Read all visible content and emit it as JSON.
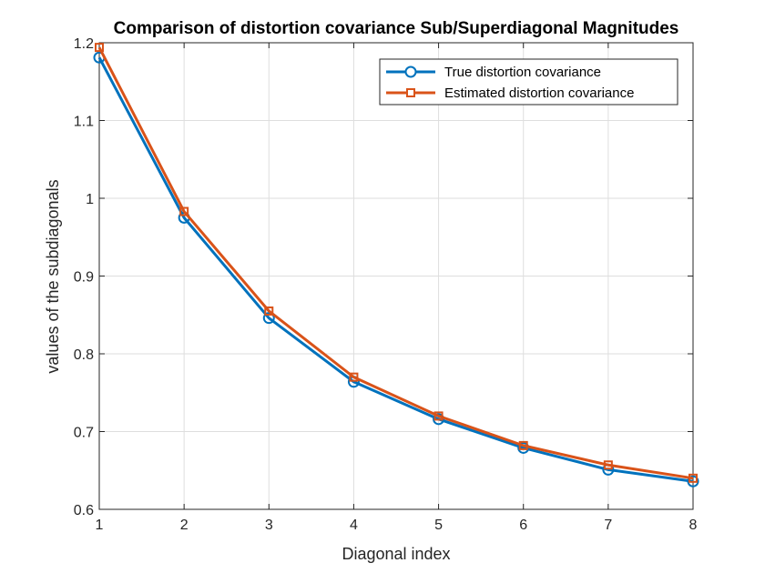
{
  "chart_data": {
    "type": "line",
    "title": "Comparison of distortion covariance Sub/Superdiagonal Magnitudes",
    "xlabel": "Diagonal index",
    "ylabel": "values of the subdiagonals",
    "xlim": [
      1,
      8
    ],
    "ylim": [
      0.6,
      1.2
    ],
    "grid": true,
    "legend_position": "top-right",
    "x": [
      1,
      2,
      3,
      4,
      5,
      6,
      7,
      8
    ],
    "x_ticks": [
      "1",
      "2",
      "3",
      "4",
      "5",
      "6",
      "7",
      "8"
    ],
    "y_tick_values": [
      0.6,
      0.7,
      0.8,
      0.9,
      1.0,
      1.1,
      1.2
    ],
    "y_ticks": [
      "0.6",
      "0.7",
      "0.8",
      "0.9",
      "1",
      "1.1",
      "1.2"
    ],
    "series": [
      {
        "name": "True distortion covariance",
        "color": "#0072BD",
        "marker": "circle",
        "values": [
          1.181,
          0.975,
          0.846,
          0.764,
          0.716,
          0.679,
          0.651,
          0.636
        ]
      },
      {
        "name": "Estimated distortion covariance",
        "color": "#D95319",
        "marker": "square",
        "values": [
          1.194,
          0.983,
          0.855,
          0.77,
          0.72,
          0.682,
          0.657,
          0.64
        ]
      }
    ]
  }
}
